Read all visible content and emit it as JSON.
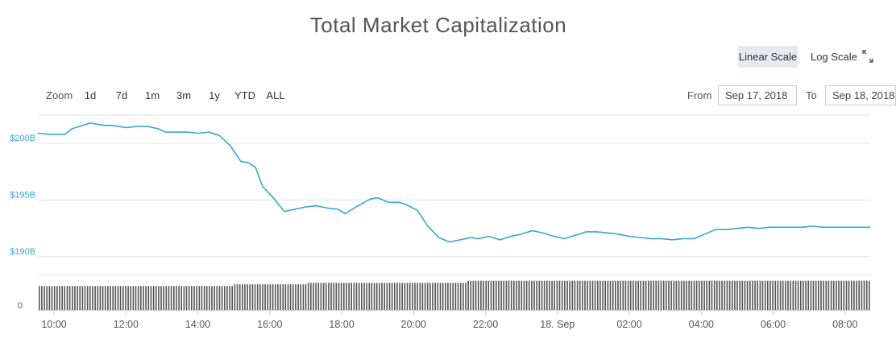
{
  "chart_data": {
    "type": "line",
    "title": "Total Market Capitalization",
    "y_ticks": [
      "$200B",
      "$195B",
      "$190B"
    ],
    "y_range": [
      188.5,
      202.5
    ],
    "volume_tick": "0",
    "x_ticks": [
      "10:00",
      "12:00",
      "14:00",
      "16:00",
      "18:00",
      "20:00",
      "22:00",
      "18. Sep",
      "02:00",
      "04:00",
      "06:00",
      "08:00"
    ],
    "x_range_hours": [
      9.55,
      32.7
    ],
    "series": [
      {
        "color": "#3aa6cf",
        "x_hours": [
          9.55,
          9.9,
          10.1,
          10.3,
          10.5,
          10.8,
          11.0,
          11.2,
          11.4,
          11.6,
          11.8,
          12.0,
          12.3,
          12.6,
          12.9,
          13.1,
          13.4,
          13.7,
          14.0,
          14.3,
          14.6,
          14.9,
          15.2,
          15.4,
          15.6,
          15.8,
          16.1,
          16.4,
          16.7,
          17.0,
          17.3,
          17.6,
          17.9,
          18.1,
          18.4,
          18.8,
          19.0,
          19.3,
          19.6,
          19.8,
          20.1,
          20.4,
          20.7,
          21.0,
          21.3,
          21.6,
          21.8,
          22.1,
          22.4,
          22.7,
          23.0,
          23.3,
          23.6,
          23.9,
          24.2,
          24.5,
          24.8,
          25.1,
          25.4,
          25.7,
          26.0,
          26.3,
          26.6,
          26.9,
          27.2,
          27.5,
          27.8,
          28.1,
          28.4,
          28.7,
          29.0,
          29.3,
          29.6,
          29.9,
          30.2,
          30.5,
          30.8,
          31.1,
          31.4,
          31.7,
          32.0,
          32.3,
          32.7
        ],
        "values": [
          200.9,
          200.8,
          200.8,
          200.8,
          201.3,
          201.6,
          201.8,
          201.7,
          201.6,
          201.6,
          201.5,
          201.4,
          201.5,
          201.5,
          201.3,
          201.0,
          201.0,
          201.0,
          200.9,
          201.0,
          200.7,
          199.8,
          198.4,
          198.3,
          197.9,
          196.2,
          195.2,
          194.0,
          194.2,
          194.4,
          194.5,
          194.3,
          194.2,
          193.8,
          194.4,
          195.1,
          195.2,
          194.8,
          194.8,
          194.6,
          194.1,
          192.7,
          191.7,
          191.3,
          191.5,
          191.7,
          191.6,
          191.8,
          191.5,
          191.8,
          192.0,
          192.3,
          192.1,
          191.8,
          191.6,
          191.9,
          192.2,
          192.2,
          192.1,
          192.0,
          191.8,
          191.7,
          191.6,
          191.6,
          191.5,
          191.6,
          191.6,
          192.0,
          192.4,
          192.4,
          192.5,
          192.6,
          192.5,
          192.6,
          192.6,
          192.6,
          192.6,
          192.7,
          192.6,
          192.6,
          192.6,
          192.6,
          192.6
        ]
      }
    ],
    "volume": {
      "x_range_hours": [
        9.55,
        32.7
      ],
      "levels": [
        {
          "until_hours": 15.0,
          "relative": 0.82
        },
        {
          "until_hours": 17.0,
          "relative": 0.88
        },
        {
          "until_hours": 21.5,
          "relative": 0.93
        },
        {
          "until_hours": 32.7,
          "relative": 1.0
        }
      ]
    },
    "grid": true
  },
  "controls": {
    "scale_linear": "Linear Scale",
    "scale_log": "Log Scale",
    "zoom_label": "Zoom",
    "zoom_buttons": [
      "1d",
      "7d",
      "1m",
      "3m",
      "1y",
      "YTD",
      "ALL"
    ],
    "active_zoom": "1d",
    "from_label": "From",
    "from_value": "Sep 17, 2018",
    "to_label": "To",
    "to_value": "Sep 18, 2018"
  },
  "icons": {
    "fullscreen": "fullscreen-icon"
  }
}
